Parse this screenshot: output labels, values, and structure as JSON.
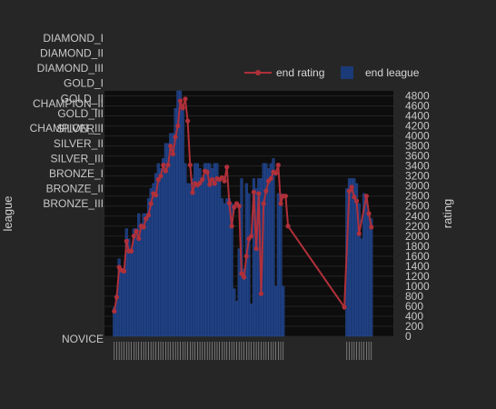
{
  "chart_data": {
    "type": "bar+line",
    "legend": {
      "position": "top-right",
      "items": [
        {
          "label": "end rating",
          "kind": "line",
          "color": "#b0303a"
        },
        {
          "label": "end league",
          "kind": "bar",
          "color": "#1b3a78"
        }
      ]
    },
    "y_left": {
      "title": "league",
      "categories": [
        "NOVICE",
        "BRONZE_III",
        "BRONZE_II",
        "BRONZE_I",
        "SILVER_III",
        "SILVER_II",
        "SILVER_I",
        "GOLD_III",
        "GOLD_II",
        "GOLD_I",
        "DIAMOND_III",
        "DIAMOND_II",
        "DIAMOND_I",
        "CHAMPION_III",
        "CHAMPION_II"
      ],
      "tick_values": [
        -50,
        2650,
        2950,
        3250,
        3550,
        3850,
        4150,
        4450,
        4750,
        5050,
        5350,
        5650,
        5950,
        6450,
        6950
      ]
    },
    "y_right": {
      "title": "rating",
      "range": [
        0,
        4900
      ],
      "ticks": [
        0,
        200,
        400,
        600,
        800,
        1000,
        1200,
        1400,
        1600,
        1800,
        2000,
        2200,
        2400,
        2600,
        2800,
        3000,
        3200,
        3400,
        3600,
        3800,
        4000,
        4200,
        4400,
        4600,
        4800
      ]
    },
    "x": {
      "range": [
        -4,
        114
      ],
      "tick_labels_illegible": true
    },
    "bar_color": "#1b3a78",
    "line_color": "#b0303a",
    "grid": true,
    "bars": [
      {
        "x": 0,
        "h": 580
      },
      {
        "x": 1,
        "h": 830
      },
      {
        "x": 2,
        "h": 1550
      },
      {
        "x": 3,
        "h": 1350
      },
      {
        "x": 4,
        "h": 1350
      },
      {
        "x": 5,
        "h": 2150
      },
      {
        "x": 6,
        "h": 1950
      },
      {
        "x": 7,
        "h": 1750
      },
      {
        "x": 8,
        "h": 2150
      },
      {
        "x": 9,
        "h": 2150
      },
      {
        "x": 10,
        "h": 2450
      },
      {
        "x": 11,
        "h": 2250
      },
      {
        "x": 12,
        "h": 2450
      },
      {
        "x": 13,
        "h": 2450
      },
      {
        "x": 14,
        "h": 2750
      },
      {
        "x": 15,
        "h": 2950
      },
      {
        "x": 16,
        "h": 3050
      },
      {
        "x": 17,
        "h": 3250
      },
      {
        "x": 18,
        "h": 3450
      },
      {
        "x": 19,
        "h": 3350
      },
      {
        "x": 20,
        "h": 3550
      },
      {
        "x": 21,
        "h": 3850
      },
      {
        "x": 22,
        "h": 3850
      },
      {
        "x": 23,
        "h": 4050
      },
      {
        "x": 24,
        "h": 4050
      },
      {
        "x": 25,
        "h": 4550
      },
      {
        "x": 26,
        "h": 4950
      },
      {
        "x": 27,
        "h": 4950
      },
      {
        "x": 28,
        "h": 4550
      },
      {
        "x": 29,
        "h": 3450
      },
      {
        "x": 30,
        "h": 3050
      },
      {
        "x": 31,
        "h": 3050
      },
      {
        "x": 32,
        "h": 3150
      },
      {
        "x": 33,
        "h": 3450
      },
      {
        "x": 34,
        "h": 3450
      },
      {
        "x": 35,
        "h": 3350
      },
      {
        "x": 36,
        "h": 3150
      },
      {
        "x": 37,
        "h": 3450
      },
      {
        "x": 38,
        "h": 3450
      },
      {
        "x": 39,
        "h": 3450
      },
      {
        "x": 40,
        "h": 3350
      },
      {
        "x": 41,
        "h": 3450
      },
      {
        "x": 42,
        "h": 3450
      },
      {
        "x": 43,
        "h": 3150
      },
      {
        "x": 44,
        "h": 2750
      },
      {
        "x": 45,
        "h": 2650
      },
      {
        "x": 46,
        "h": 2750
      },
      {
        "x": 47,
        "h": 2750
      },
      {
        "x": 48,
        "h": 2650
      },
      {
        "x": 49,
        "h": 950
      },
      {
        "x": 50,
        "h": 700
      },
      {
        "x": 51,
        "h": 1750
      },
      {
        "x": 52,
        "h": 3150
      },
      {
        "x": 53,
        "h": 1350
      },
      {
        "x": 54,
        "h": 3050
      },
      {
        "x": 55,
        "h": 2850
      },
      {
        "x": 56,
        "h": 650
      },
      {
        "x": 57,
        "h": 3150
      },
      {
        "x": 58,
        "h": 2950
      },
      {
        "x": 59,
        "h": 3150
      },
      {
        "x": 60,
        "h": 3150
      },
      {
        "x": 61,
        "h": 3450
      },
      {
        "x": 62,
        "h": 3450
      },
      {
        "x": 63,
        "h": 3350
      },
      {
        "x": 64,
        "h": 3450
      },
      {
        "x": 65,
        "h": 3550
      },
      {
        "x": 66,
        "h": 1000
      },
      {
        "x": 67,
        "h": 2850
      },
      {
        "x": 68,
        "h": 2850
      },
      {
        "x": 69,
        "h": 1000
      },
      {
        "x": 95,
        "h": 2950
      },
      {
        "x": 96,
        "h": 3150
      },
      {
        "x": 97,
        "h": 3150
      },
      {
        "x": 98,
        "h": 3150
      },
      {
        "x": 99,
        "h": 3050
      },
      {
        "x": 100,
        "h": 2650
      },
      {
        "x": 101,
        "h": 1950
      },
      {
        "x": 102,
        "h": 2850
      },
      {
        "x": 103,
        "h": 2750
      },
      {
        "x": 104,
        "h": 2450
      },
      {
        "x": 105,
        "h": 2350
      }
    ],
    "line": [
      {
        "x": 0,
        "y": 500
      },
      {
        "x": 1,
        "y": 780
      },
      {
        "x": 2,
        "y": 1380
      },
      {
        "x": 3,
        "y": 1320
      },
      {
        "x": 4,
        "y": 1300
      },
      {
        "x": 5,
        "y": 1900
      },
      {
        "x": 6,
        "y": 1700
      },
      {
        "x": 7,
        "y": 1700
      },
      {
        "x": 8,
        "y": 2000
      },
      {
        "x": 9,
        "y": 2100
      },
      {
        "x": 10,
        "y": 1950
      },
      {
        "x": 11,
        "y": 2200
      },
      {
        "x": 12,
        "y": 2180
      },
      {
        "x": 13,
        "y": 2350
      },
      {
        "x": 14,
        "y": 2420
      },
      {
        "x": 15,
        "y": 2650
      },
      {
        "x": 16,
        "y": 2850
      },
      {
        "x": 17,
        "y": 2820
      },
      {
        "x": 18,
        "y": 3130
      },
      {
        "x": 19,
        "y": 3200
      },
      {
        "x": 20,
        "y": 3420
      },
      {
        "x": 21,
        "y": 3300
      },
      {
        "x": 22,
        "y": 3420
      },
      {
        "x": 23,
        "y": 3800
      },
      {
        "x": 24,
        "y": 3640
      },
      {
        "x": 25,
        "y": 3980
      },
      {
        "x": 26,
        "y": 4200
      },
      {
        "x": 27,
        "y": 4700
      },
      {
        "x": 28,
        "y": 4560
      },
      {
        "x": 29,
        "y": 4740
      },
      {
        "x": 30,
        "y": 4300
      },
      {
        "x": 31,
        "y": 3420
      },
      {
        "x": 32,
        "y": 2870
      },
      {
        "x": 33,
        "y": 3050
      },
      {
        "x": 34,
        "y": 3020
      },
      {
        "x": 35,
        "y": 3060
      },
      {
        "x": 36,
        "y": 3130
      },
      {
        "x": 37,
        "y": 3300
      },
      {
        "x": 38,
        "y": 3280
      },
      {
        "x": 39,
        "y": 3030
      },
      {
        "x": 40,
        "y": 3130
      },
      {
        "x": 41,
        "y": 3050
      },
      {
        "x": 42,
        "y": 3150
      },
      {
        "x": 43,
        "y": 3130
      },
      {
        "x": 44,
        "y": 3170
      },
      {
        "x": 45,
        "y": 3100
      },
      {
        "x": 46,
        "y": 3380
      },
      {
        "x": 47,
        "y": 2660
      },
      {
        "x": 48,
        "y": 2200
      },
      {
        "x": 49,
        "y": 2580
      },
      {
        "x": 50,
        "y": 2650
      },
      {
        "x": 51,
        "y": 2600
      },
      {
        "x": 52,
        "y": 1250
      },
      {
        "x": 53,
        "y": 1180
      },
      {
        "x": 54,
        "y": 1600
      },
      {
        "x": 55,
        "y": 1950
      },
      {
        "x": 56,
        "y": 2000
      },
      {
        "x": 57,
        "y": 2880
      },
      {
        "x": 58,
        "y": 1750
      },
      {
        "x": 59,
        "y": 2850
      },
      {
        "x": 60,
        "y": 850
      },
      {
        "x": 61,
        "y": 2650
      },
      {
        "x": 62,
        "y": 2900
      },
      {
        "x": 63,
        "y": 3100
      },
      {
        "x": 64,
        "y": 3150
      },
      {
        "x": 65,
        "y": 3280
      },
      {
        "x": 66,
        "y": 3260
      },
      {
        "x": 67,
        "y": 3420
      },
      {
        "x": 68,
        "y": 2650
      },
      {
        "x": 69,
        "y": 2800
      },
      {
        "x": 70,
        "y": 2800
      },
      {
        "x": 71,
        "y": 2200
      },
      {
        "x": 94,
        "y": 580
      },
      {
        "x": 96,
        "y": 2900
      },
      {
        "x": 97,
        "y": 2980
      },
      {
        "x": 98,
        "y": 2780
      },
      {
        "x": 99,
        "y": 2700
      },
      {
        "x": 100,
        "y": 2050
      },
      {
        "x": 103,
        "y": 2800
      },
      {
        "x": 104,
        "y": 2450
      },
      {
        "x": 105,
        "y": 2180
      }
    ]
  }
}
